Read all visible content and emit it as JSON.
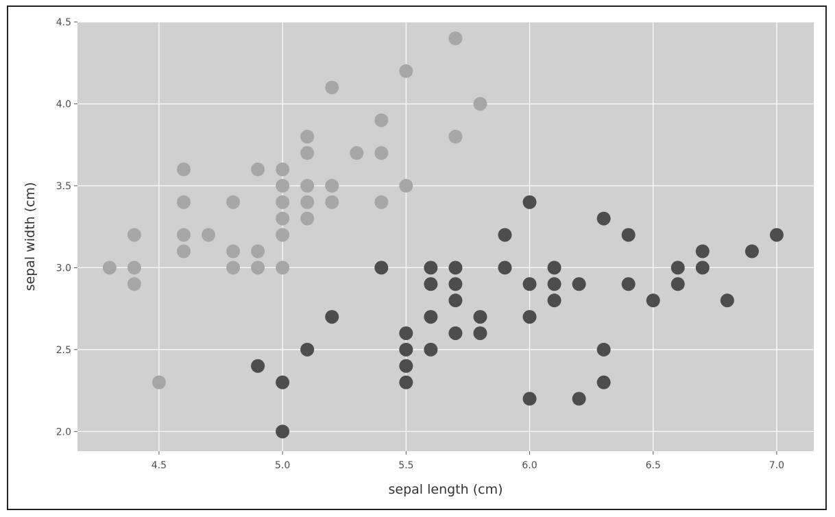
{
  "chart_data": {
    "type": "scatter",
    "title": "",
    "xlabel": "sepal length (cm)",
    "ylabel": "sepal width (cm)",
    "xlim": [
      4.17,
      7.15
    ],
    "ylim": [
      1.88,
      4.5
    ],
    "xticks": [
      4.5,
      5.0,
      5.5,
      6.0,
      6.5,
      7.0
    ],
    "xtick_labels": [
      "4.5",
      "5.0",
      "5.5",
      "6.0",
      "6.5",
      "7.0"
    ],
    "yticks": [
      2.0,
      2.5,
      3.0,
      3.5,
      4.0,
      4.5
    ],
    "ytick_labels": [
      "2.0",
      "2.5",
      "3.0",
      "3.5",
      "4.0",
      "4.5"
    ],
    "grid": true,
    "colors": {
      "background": "#d0d0d0",
      "grid": "#ffffff",
      "frame": "#222222"
    },
    "series": [
      {
        "color": "#a6a6a6",
        "points": [
          [
            4.3,
            3.0
          ],
          [
            4.4,
            3.2
          ],
          [
            4.4,
            3.0
          ],
          [
            4.4,
            2.9
          ],
          [
            4.5,
            2.3
          ],
          [
            4.6,
            3.6
          ],
          [
            4.6,
            3.4
          ],
          [
            4.6,
            3.2
          ],
          [
            4.6,
            3.1
          ],
          [
            4.7,
            3.2
          ],
          [
            4.8,
            3.4
          ],
          [
            4.8,
            3.1
          ],
          [
            4.8,
            3.0
          ],
          [
            4.9,
            3.6
          ],
          [
            4.9,
            3.1
          ],
          [
            4.9,
            3.0
          ],
          [
            5.0,
            3.6
          ],
          [
            5.0,
            3.5
          ],
          [
            5.0,
            3.4
          ],
          [
            5.0,
            3.3
          ],
          [
            5.0,
            3.2
          ],
          [
            5.0,
            3.0
          ],
          [
            5.1,
            3.8
          ],
          [
            5.1,
            3.7
          ],
          [
            5.1,
            3.5
          ],
          [
            5.1,
            3.4
          ],
          [
            5.1,
            3.3
          ],
          [
            5.2,
            4.1
          ],
          [
            5.2,
            3.5
          ],
          [
            5.2,
            3.4
          ],
          [
            5.3,
            3.7
          ],
          [
            5.4,
            3.9
          ],
          [
            5.4,
            3.7
          ],
          [
            5.4,
            3.4
          ],
          [
            5.5,
            4.2
          ],
          [
            5.5,
            3.5
          ],
          [
            5.7,
            4.4
          ],
          [
            5.7,
            3.8
          ],
          [
            5.8,
            4.0
          ]
        ]
      },
      {
        "color": "#4d4d4d",
        "points": [
          [
            4.9,
            2.4
          ],
          [
            5.0,
            2.3
          ],
          [
            5.0,
            2.0
          ],
          [
            5.1,
            2.5
          ],
          [
            5.2,
            2.7
          ],
          [
            5.4,
            3.0
          ],
          [
            5.5,
            2.6
          ],
          [
            5.5,
            2.5
          ],
          [
            5.5,
            2.4
          ],
          [
            5.5,
            2.3
          ],
          [
            5.6,
            3.0
          ],
          [
            5.6,
            2.9
          ],
          [
            5.6,
            2.7
          ],
          [
            5.6,
            2.5
          ],
          [
            5.7,
            3.0
          ],
          [
            5.7,
            2.9
          ],
          [
            5.7,
            2.8
          ],
          [
            5.7,
            2.6
          ],
          [
            5.8,
            2.7
          ],
          [
            5.8,
            2.6
          ],
          [
            5.9,
            3.2
          ],
          [
            5.9,
            3.0
          ],
          [
            6.0,
            3.4
          ],
          [
            6.0,
            2.9
          ],
          [
            6.0,
            2.7
          ],
          [
            6.0,
            2.2
          ],
          [
            6.1,
            3.0
          ],
          [
            6.1,
            2.9
          ],
          [
            6.1,
            2.8
          ],
          [
            6.2,
            2.9
          ],
          [
            6.2,
            2.2
          ],
          [
            6.3,
            3.3
          ],
          [
            6.3,
            2.5
          ],
          [
            6.3,
            2.3
          ],
          [
            6.4,
            3.2
          ],
          [
            6.4,
            2.9
          ],
          [
            6.5,
            2.8
          ],
          [
            6.6,
            3.0
          ],
          [
            6.6,
            2.9
          ],
          [
            6.7,
            3.1
          ],
          [
            6.7,
            3.0
          ],
          [
            6.8,
            2.8
          ],
          [
            6.9,
            3.1
          ],
          [
            7.0,
            3.2
          ]
        ]
      }
    ]
  }
}
